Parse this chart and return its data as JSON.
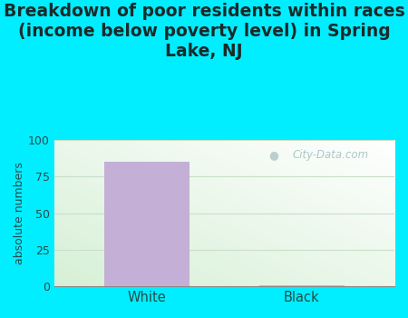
{
  "title": "Breakdown of poor residents within races\n(income below poverty level) in Spring\nLake, NJ",
  "categories": [
    "White",
    "Black"
  ],
  "values": [
    85,
    1
  ],
  "bar_color_white": "#c4afd6",
  "bar_color_black": "#c0b4d0",
  "ylabel": "absolute numbers",
  "ylim": [
    0,
    100
  ],
  "yticks": [
    0,
    25,
    50,
    75,
    100
  ],
  "bg_outer": "#00eeff",
  "title_color": "#1a2a2a",
  "title_fontsize": 13.5,
  "axis_label_color": "#2a4a4a",
  "tick_label_color": "#2a4a4a",
  "watermark": "City-Data.com",
  "watermark_color": "#a0bec0",
  "grid_color": "#c8e0c8",
  "plot_bg_bottom_left": "#d8edd8",
  "plot_bg_top_right": "#f8fff8"
}
